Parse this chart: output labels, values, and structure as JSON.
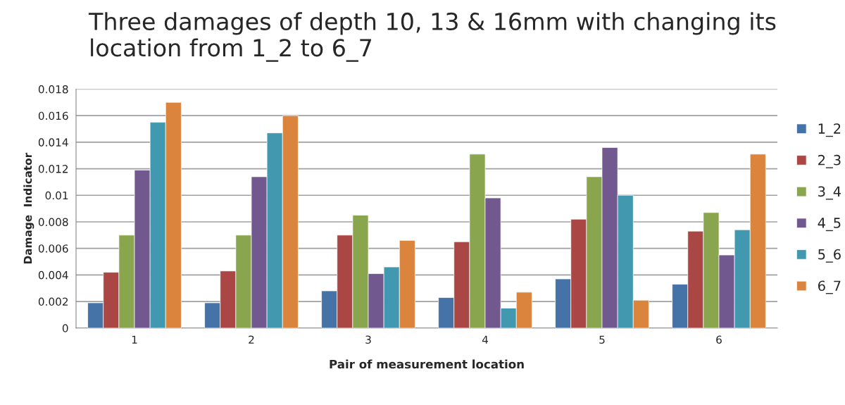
{
  "chart_data": {
    "type": "bar",
    "title": "Three damages of depth 10, 13 & 16mm with changing its location from 1_2 to 6_7",
    "xlabel": "Pair of measurement location",
    "ylabel": "Damage  Indicator",
    "categories": [
      "1",
      "2",
      "3",
      "4",
      "5",
      "6"
    ],
    "series": [
      {
        "name": "1_2",
        "color": "#4572a7",
        "values": [
          0.0019,
          0.0019,
          0.0028,
          0.0023,
          0.0037,
          0.0033
        ]
      },
      {
        "name": "2_3",
        "color": "#aa4643",
        "values": [
          0.0042,
          0.0043,
          0.007,
          0.0065,
          0.0082,
          0.0073
        ]
      },
      {
        "name": "3_4",
        "color": "#89a54e",
        "values": [
          0.007,
          0.007,
          0.0085,
          0.0131,
          0.0114,
          0.0087
        ]
      },
      {
        "name": "4_5",
        "color": "#71588f",
        "values": [
          0.0119,
          0.0114,
          0.0041,
          0.0098,
          0.0136,
          0.0055
        ]
      },
      {
        "name": "5_6",
        "color": "#4198af",
        "values": [
          0.0155,
          0.0147,
          0.0046,
          0.0015,
          0.01,
          0.0074
        ]
      },
      {
        "name": "6_7",
        "color": "#db843d",
        "values": [
          0.017,
          0.016,
          0.0066,
          0.0027,
          0.0021,
          0.0131
        ]
      }
    ],
    "ylim": [
      0,
      0.018
    ],
    "yticks": [
      0,
      0.002,
      0.004,
      0.006,
      0.008,
      0.01,
      0.012,
      0.014,
      0.016,
      0.018
    ],
    "grid": "y",
    "legend": "right"
  }
}
